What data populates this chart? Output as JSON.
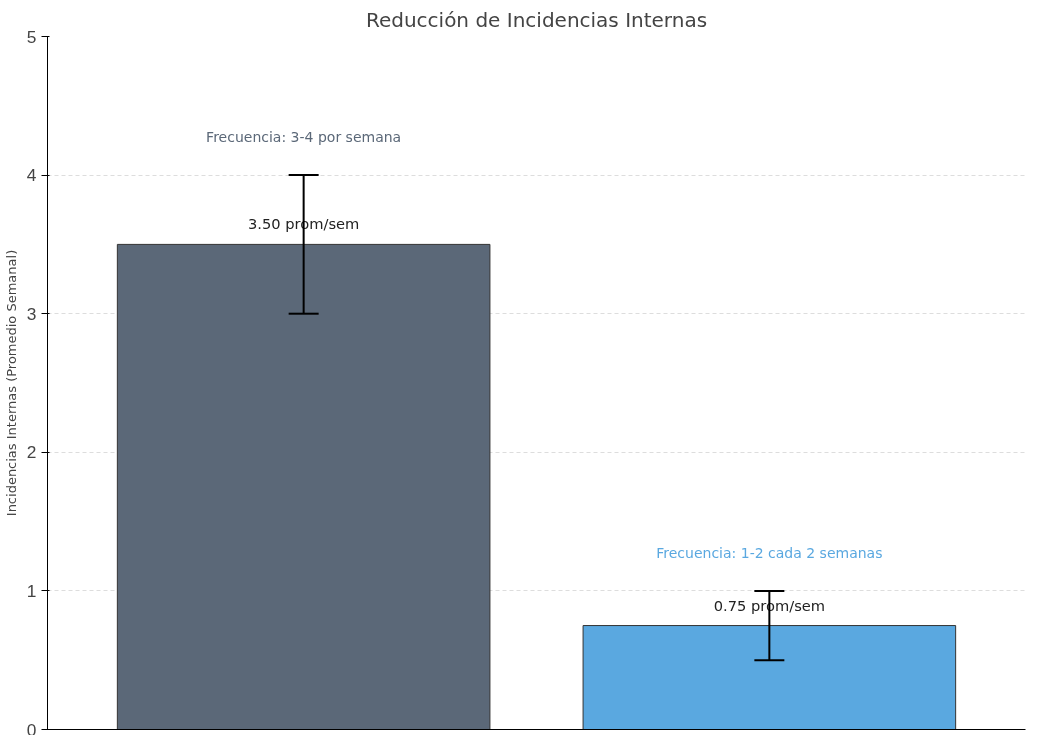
{
  "chart_data": {
    "type": "bar",
    "title": "Reducción de Incidencias Internas",
    "ylabel": "Incidencias Internas (Promedio Semanal)",
    "categories": [
      null,
      null
    ],
    "values": [
      3.5,
      0.75
    ],
    "colors": [
      "#5b6878",
      "#5aa8e0"
    ],
    "errors": [
      [
        3,
        4
      ],
      [
        0.5,
        1
      ]
    ],
    "value_labels": [
      "3.50 prom/sem",
      "0.75 prom/sem"
    ],
    "annotations": [
      "Frecuencia: 3-4 por semana",
      "Frecuencia: 1-2 cada 2 semanas"
    ],
    "ylim": [
      0,
      5
    ],
    "yticks": [
      0,
      1,
      2,
      3,
      4,
      5
    ],
    "grid": "y"
  }
}
